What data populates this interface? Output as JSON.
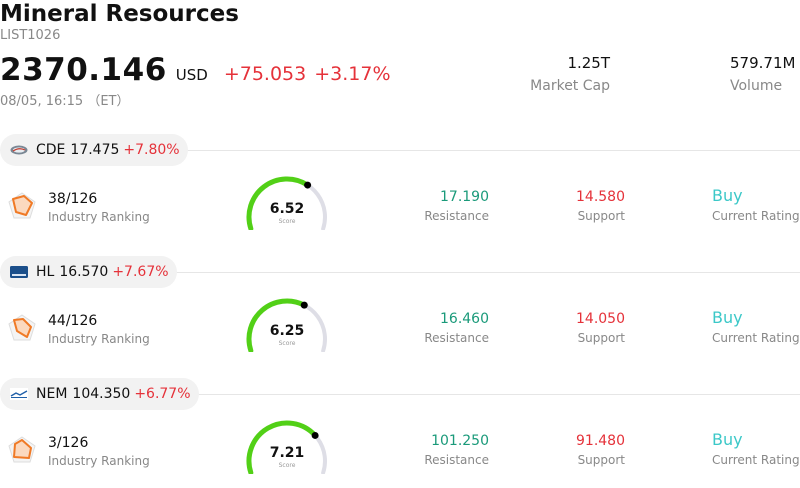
{
  "header": {
    "title": "Mineral Resources",
    "code": "LIST1026",
    "price": "2370.146",
    "currency": "USD",
    "change": "+75.053",
    "change_pct": "+3.17%",
    "datetime": "08/05, 16:15 （ET）"
  },
  "stats": {
    "market_cap_value": "1.25T",
    "market_cap_label": "Market Cap",
    "volume_value": "579.71M",
    "volume_label": "Volume"
  },
  "labels": {
    "industry_ranking": "Industry Ranking",
    "score": "Score",
    "resistance": "Resistance",
    "support": "Support",
    "current_rating": "Current Rating"
  },
  "colors": {
    "up": "#e5323a",
    "resistance": "#1a9a7a",
    "rating": "#3cc8c8",
    "gauge_fill": "#52d017",
    "gauge_track": "#dedee6",
    "radar": "#f07a26"
  },
  "stocks": [
    {
      "symbol": "CDE",
      "price": "17.475",
      "change_pct": "+7.80%",
      "logo_icon": "cde-logo-icon",
      "ranking": "38/126",
      "score": "6.52",
      "score_fraction": 0.652,
      "resistance": "17.190",
      "support": "14.580",
      "rating": "Buy"
    },
    {
      "symbol": "HL",
      "price": "16.570",
      "change_pct": "+7.67%",
      "logo_icon": "hl-logo-icon",
      "ranking": "44/126",
      "score": "6.25",
      "score_fraction": 0.625,
      "resistance": "16.460",
      "support": "14.050",
      "rating": "Buy"
    },
    {
      "symbol": "NEM",
      "price": "104.350",
      "change_pct": "+6.77%",
      "logo_icon": "nem-logo-icon",
      "ranking": "3/126",
      "score": "7.21",
      "score_fraction": 0.721,
      "resistance": "101.250",
      "support": "91.480",
      "rating": "Buy"
    }
  ]
}
